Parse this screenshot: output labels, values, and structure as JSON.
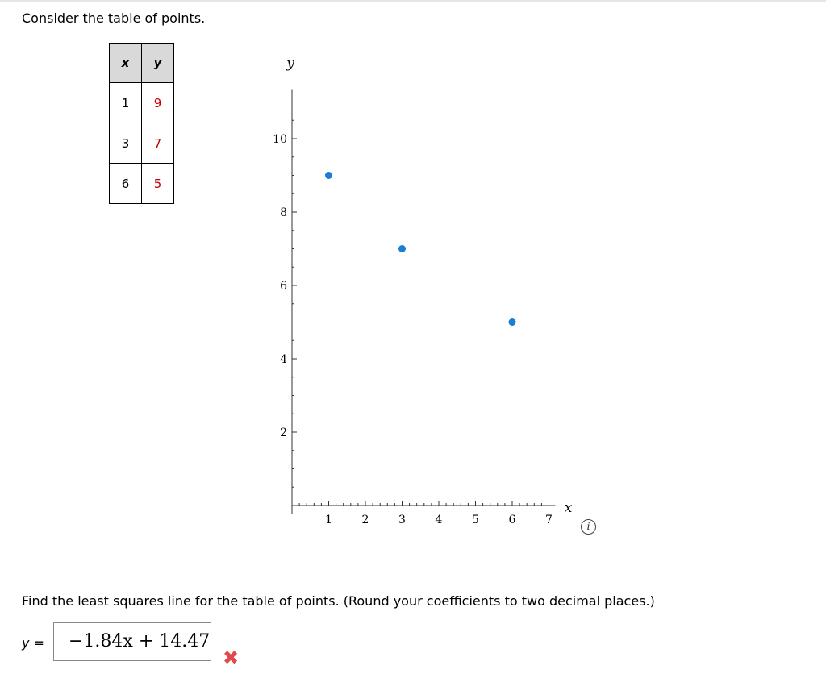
{
  "prompt": "Consider the table of points.",
  "table": {
    "headers": [
      "x",
      "y"
    ],
    "rows": [
      {
        "x": "1",
        "y": "9"
      },
      {
        "x": "3",
        "y": "7"
      },
      {
        "x": "6",
        "y": "5"
      }
    ]
  },
  "chart_data": {
    "type": "scatter",
    "xlabel": "x",
    "ylabel": "y",
    "xlim": [
      0,
      7
    ],
    "ylim": [
      0,
      11
    ],
    "x_ticks": [
      "1",
      "2",
      "3",
      "4",
      "5",
      "6",
      "7"
    ],
    "y_ticks": [
      "2",
      "4",
      "6",
      "8",
      "10"
    ],
    "points": [
      {
        "x": 1,
        "y": 9
      },
      {
        "x": 3,
        "y": 7
      },
      {
        "x": 6,
        "y": 5
      }
    ],
    "point_color": "#1a7fd4"
  },
  "question": "Find the least squares line for the table of points. (Round your coefficients to two decimal places.)",
  "answer": {
    "label": "y =",
    "value": "−1.84x + 14.47",
    "status_icon": "red-x-icon",
    "status_color": "#e04a4a"
  },
  "info_icon_label": "i"
}
